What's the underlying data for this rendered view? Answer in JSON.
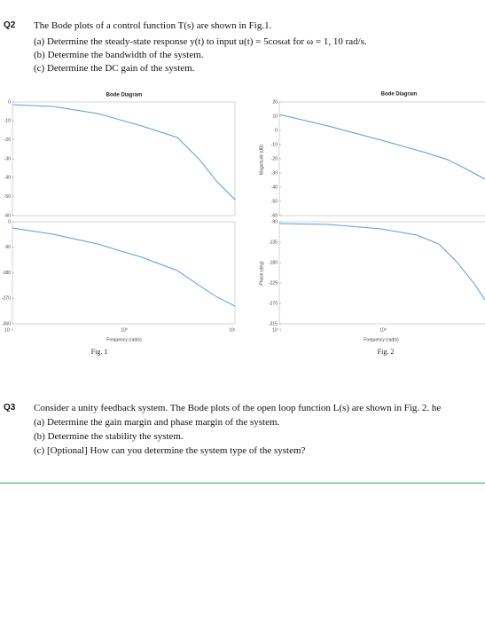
{
  "questions": [
    {
      "label": "Q2",
      "intro": "The Bode plots of a control function T(s) are shown in Fig.1.",
      "items": [
        "(a) Determine the steady-state response y(t) to input u(t) = 5cosωt for ω = 1, 10 rad/s.",
        "(b) Determine the bandwidth of the system.",
        "(c) Determine the DC gain of the system."
      ]
    },
    {
      "label": "Q3",
      "intro": "Consider a unity feedback system. The Bode plots of the open loop function L(s) are shown in Fig. 2. he",
      "items": [
        "(a) Determine the gain margin and phase margin of the system.",
        "(b) Determine the stability the system.",
        "(c) [Optional] How can you determine the system type of the system?"
      ]
    }
  ],
  "figures": [
    {
      "title": "Bode Diagram",
      "magnitude_ticks": [
        "0",
        "-10",
        "-20",
        "-30",
        "-40",
        "-50",
        "-60"
      ],
      "phase_ticks": [
        "0",
        "-90",
        "-180",
        "-270",
        "-360"
      ],
      "x_ticks": [
        "10⁻¹",
        "10⁰",
        "10¹"
      ],
      "x_label": "Frequency (rad/s)",
      "caption": "Fig. 1"
    },
    {
      "title": "Bode Diagram",
      "magnitude_label": "Magnitude (dB)",
      "phase_label": "Phase (deg)",
      "magnitude_ticks": [
        "20",
        "10",
        "0",
        "-10",
        "-20",
        "-30",
        "-40",
        "-50",
        "-60"
      ],
      "phase_ticks": [
        "-90",
        "-135",
        "-180",
        "-225",
        "-270",
        "-315"
      ],
      "x_ticks": [
        "10⁻¹",
        "10⁰"
      ],
      "x_label": "Frequency (rad/s)",
      "caption": "Fig. 2"
    }
  ]
}
